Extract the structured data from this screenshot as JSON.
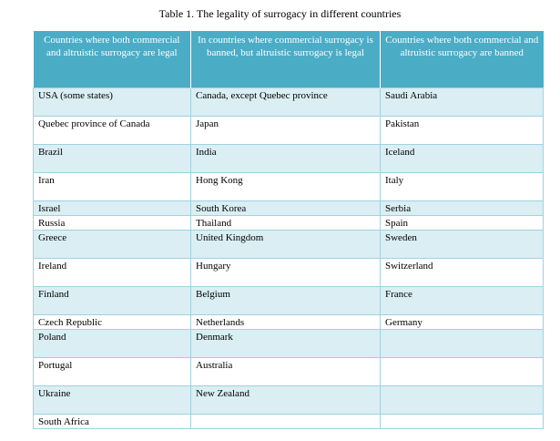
{
  "caption": "Table 1. The legality of surrogacy in different countries",
  "headers": [
    "Countries where both commercial and altruistic surrogacy are legal",
    "In countries where commercial surrogacy is banned, but altruistic surrogacy is legal",
    "Countries where both commercial and altruistic surrogacy are banned"
  ],
  "rows": [
    [
      "USA (some states)",
      "Canada, except Quebec province",
      "Saudi Arabia"
    ],
    [
      "Quebec province of Canada",
      "Japan",
      "Pakistan"
    ],
    [
      "Brazil",
      "India",
      "Iceland"
    ],
    [
      "Iran",
      "Hong Kong",
      "Italy"
    ],
    [
      "Israel",
      "South Korea",
      "Serbia"
    ],
    [
      "Russia",
      "Thailand",
      "Spain"
    ],
    [
      "Greece",
      "United Kingdom",
      "Sweden"
    ],
    [
      "Ireland",
      "Hungary",
      "Switzerland"
    ],
    [
      "Finland",
      "Belgium",
      "France"
    ],
    [
      "Czech Republic",
      "Netherlands",
      "Germany"
    ],
    [
      "Poland",
      "Denmark",
      ""
    ],
    [
      "Portugal",
      "Australia",
      ""
    ],
    [
      "Ukraine",
      "New Zealand",
      ""
    ],
    [
      "South Africa",
      "",
      ""
    ]
  ],
  "colors": {
    "header_bg": "#4bacc6",
    "band_bg": "#daeef3",
    "border": "#9fd2e0"
  }
}
